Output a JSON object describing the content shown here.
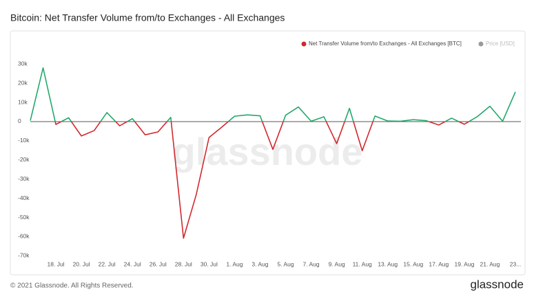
{
  "chart_data": {
    "type": "line",
    "title": "Bitcoin: Net Transfer Volume from/to Exchanges - All Exchanges",
    "watermark": "glassnode",
    "categories": [
      null,
      null,
      "18. Jul",
      null,
      "20. Jul",
      null,
      "22. Jul",
      null,
      "24. Jul",
      null,
      "26. Jul",
      null,
      "28. Jul",
      null,
      "30. Jul",
      null,
      "1. Aug",
      null,
      "3. Aug",
      null,
      "5. Aug",
      null,
      "7. Aug",
      null,
      "9. Aug",
      null,
      "11. Aug",
      null,
      "13. Aug",
      null,
      "15. Aug",
      null,
      "17. Aug",
      null,
      "19. Aug",
      null,
      "21. Aug",
      null,
      "23..."
    ],
    "series": [
      {
        "name": "Net Transfer Volume from/to Exchanges - All Exchanges [BTC]",
        "color": "#d0282e",
        "positive_color": "#22a86b",
        "values": [
          500,
          28000,
          -1500,
          2000,
          -7500,
          -4700,
          4700,
          -2200,
          1500,
          -6900,
          -5400,
          2200,
          -60800,
          -38000,
          -8300,
          -2900,
          2800,
          3500,
          3000,
          -14500,
          3300,
          7600,
          200,
          2500,
          -11500,
          6900,
          -15200,
          2900,
          300,
          200,
          1000,
          500,
          -1800,
          1800,
          -1400,
          2500,
          8000,
          200,
          15500
        ]
      }
    ],
    "inactive_legend": {
      "name": "Price [USD]",
      "color": "#9a9a9a"
    },
    "ylim": [
      -72000,
      34000
    ],
    "yticks": [
      {
        "value": 30000,
        "label": "30k"
      },
      {
        "value": 20000,
        "label": "20k"
      },
      {
        "value": 10000,
        "label": "10k"
      },
      0,
      {
        "value": -10000,
        "label": "-10k"
      },
      {
        "value": -20000,
        "label": "-20k"
      },
      {
        "value": -30000,
        "label": "-30k"
      },
      {
        "value": -40000,
        "label": "-40k"
      },
      {
        "value": -50000,
        "label": "-50k"
      },
      {
        "value": -60000,
        "label": "-60k"
      },
      {
        "value": -70000,
        "label": "-70k"
      }
    ],
    "grid": false
  },
  "footer": {
    "copyright": "© 2021 Glassnode. All Rights Reserved.",
    "logo": "glassnode"
  }
}
